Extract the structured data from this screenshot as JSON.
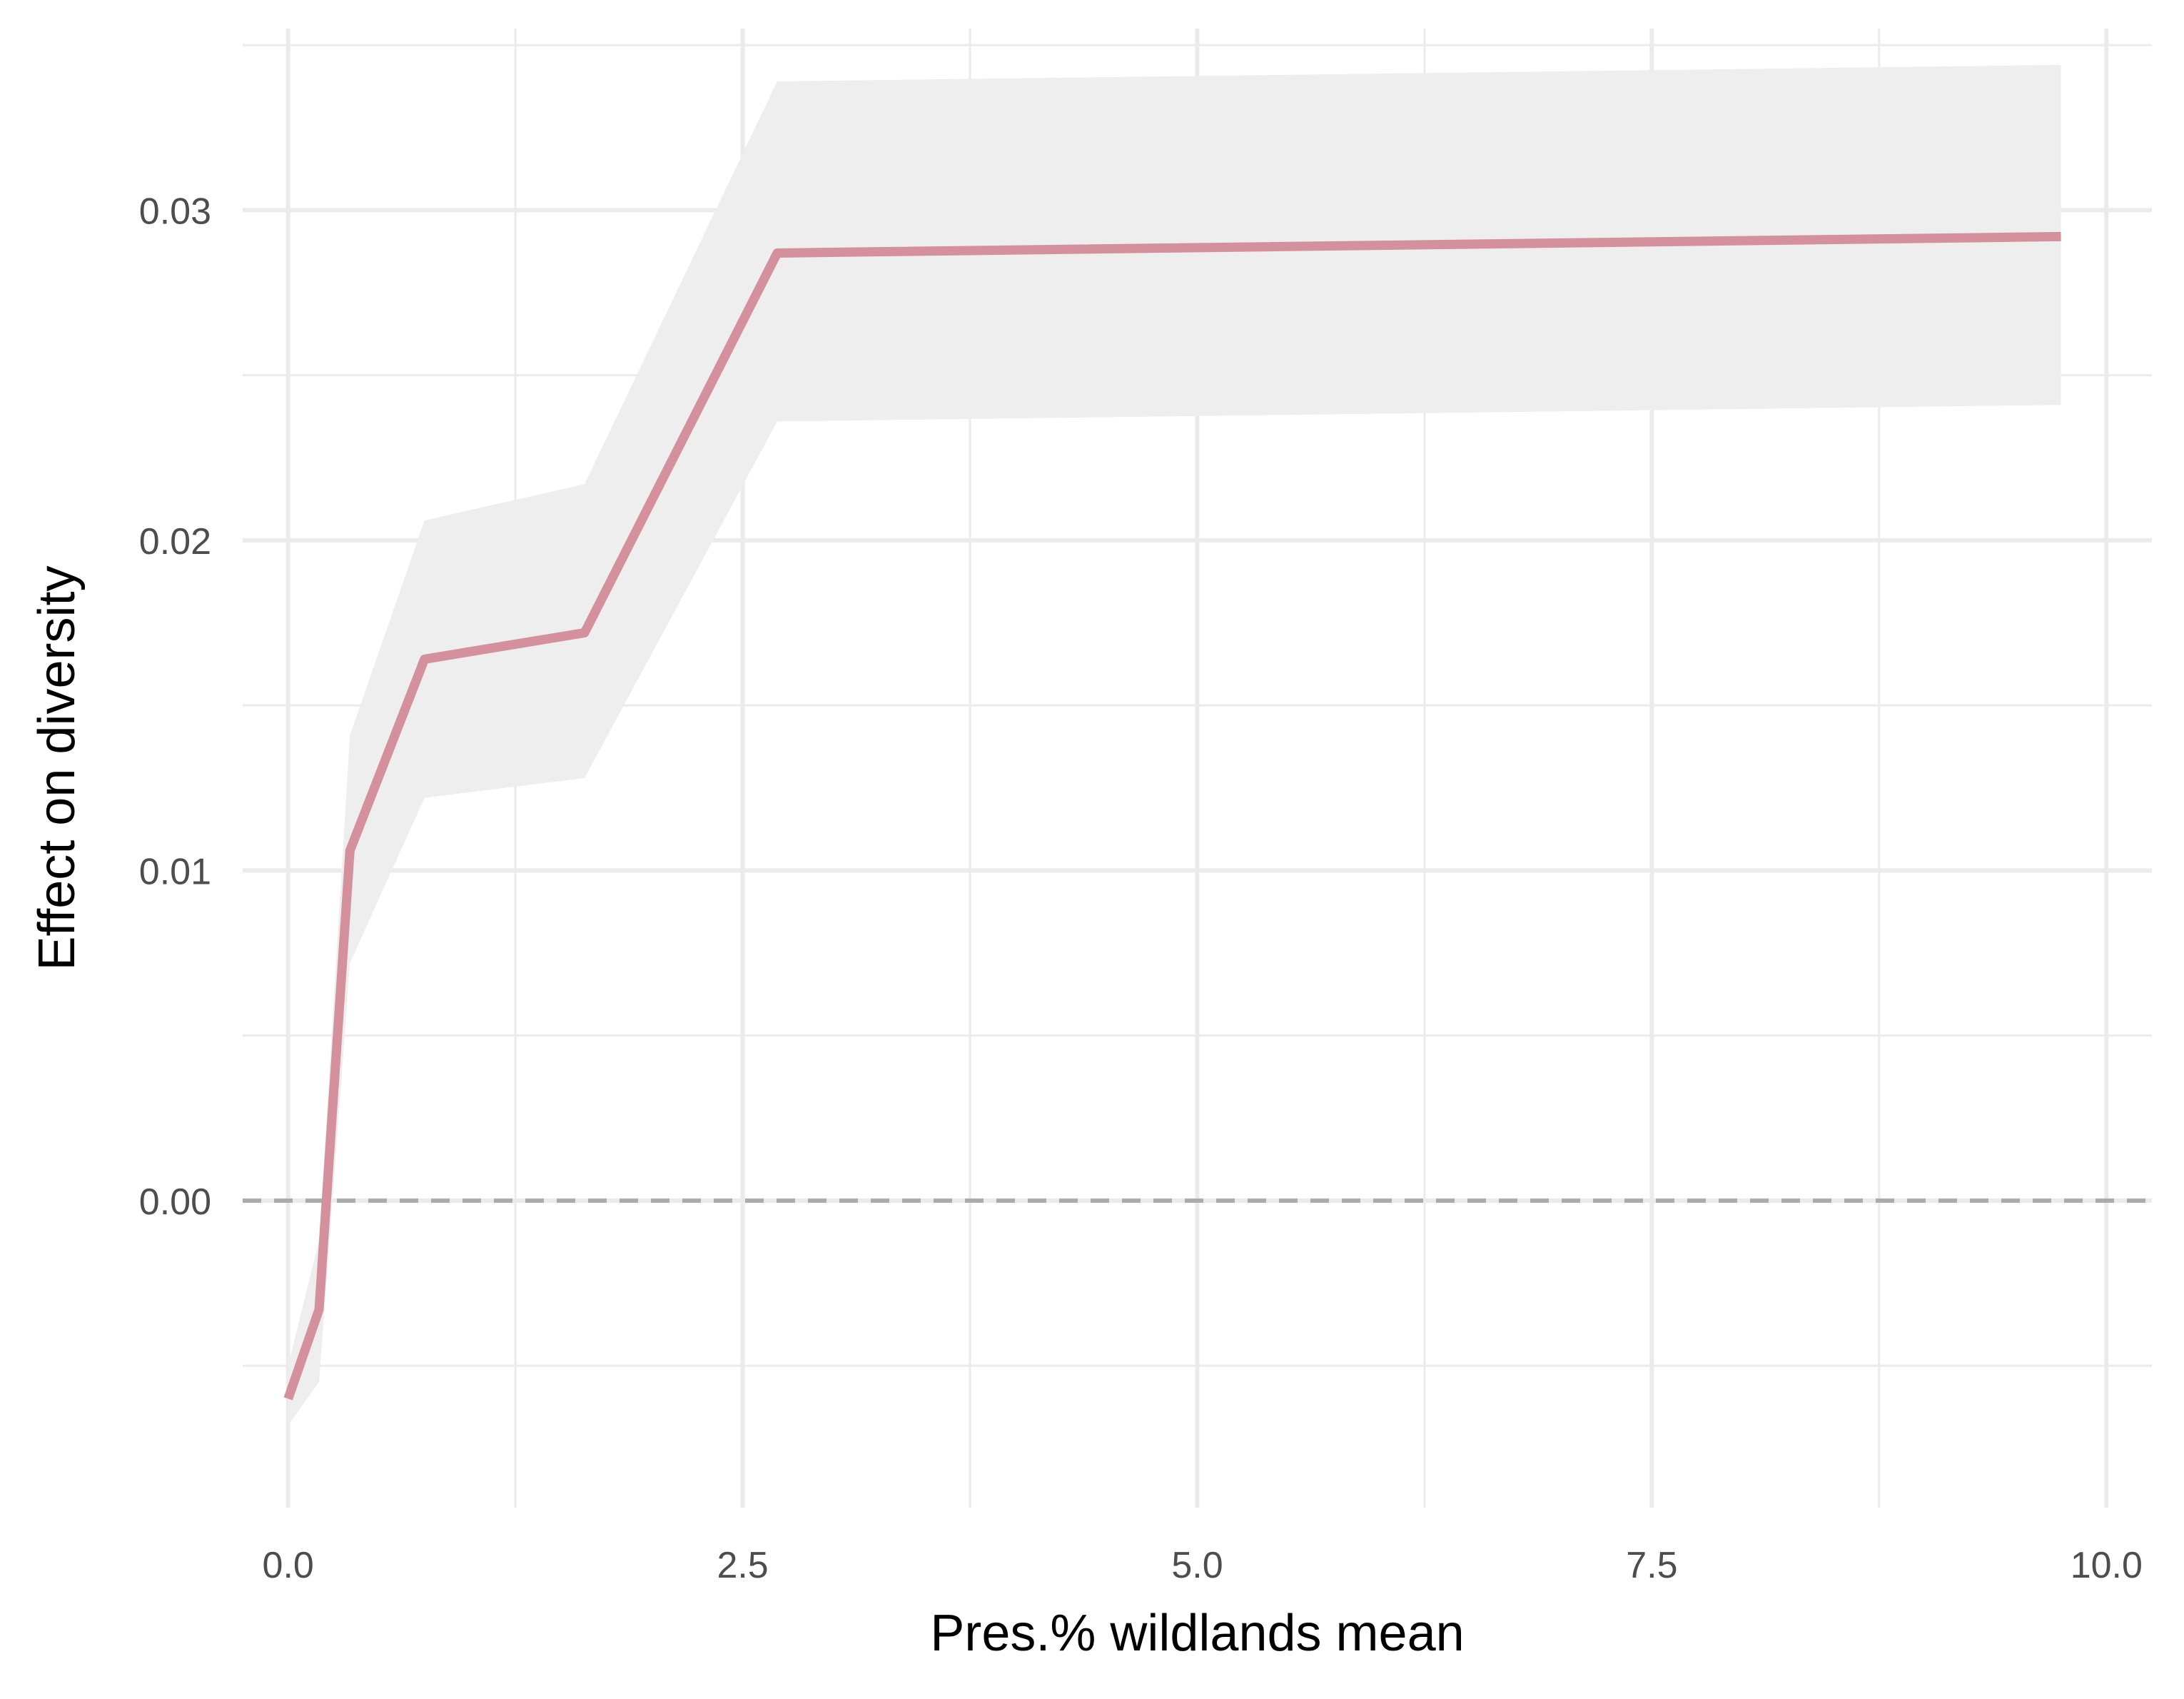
{
  "chart_data": {
    "type": "line",
    "title": "",
    "xlabel": "Pres.% wildlands mean",
    "ylabel": "Effect on diversity",
    "xlim": [
      -0.25,
      10.25
    ],
    "ylim": [
      -0.0093,
      0.0355
    ],
    "x_ticks": [
      {
        "value": 0.0,
        "label": "0.0"
      },
      {
        "value": 2.5,
        "label": "2.5"
      },
      {
        "value": 5.0,
        "label": "5.0"
      },
      {
        "value": 7.5,
        "label": "7.5"
      },
      {
        "value": 10.0,
        "label": "10.0"
      }
    ],
    "x_minor_ticks": [
      1.25,
      3.75,
      6.25,
      8.75
    ],
    "y_ticks": [
      {
        "value": 0.0,
        "label": "0.00"
      },
      {
        "value": 0.01,
        "label": "0.01"
      },
      {
        "value": 0.02,
        "label": "0.02"
      },
      {
        "value": 0.03,
        "label": "0.03"
      }
    ],
    "y_minor_ticks": [
      -0.005,
      0.005,
      0.015,
      0.025,
      0.035
    ],
    "grid": true,
    "reference_line": {
      "y": 0.0,
      "style": "dashed",
      "color": "#ababab"
    },
    "series": [
      {
        "color": "#d4909c",
        "ribbon_color": "#eeeeee",
        "points": [
          {
            "x": 0.0,
            "y": -0.006,
            "lower": -0.0068,
            "upper": -0.005
          },
          {
            "x": 0.17,
            "y": -0.0033,
            "lower": -0.0055,
            "upper": -0.0012
          },
          {
            "x": 0.34,
            "y": 0.0106,
            "lower": 0.0072,
            "upper": 0.0141
          },
          {
            "x": 0.75,
            "y": 0.0164,
            "lower": 0.0122,
            "upper": 0.0206
          },
          {
            "x": 1.63,
            "y": 0.0172,
            "lower": 0.0128,
            "upper": 0.0217
          },
          {
            "x": 2.69,
            "y": 0.0287,
            "lower": 0.0236,
            "upper": 0.0339
          },
          {
            "x": 9.75,
            "y": 0.0292,
            "lower": 0.0241,
            "upper": 0.0344
          }
        ]
      }
    ]
  }
}
